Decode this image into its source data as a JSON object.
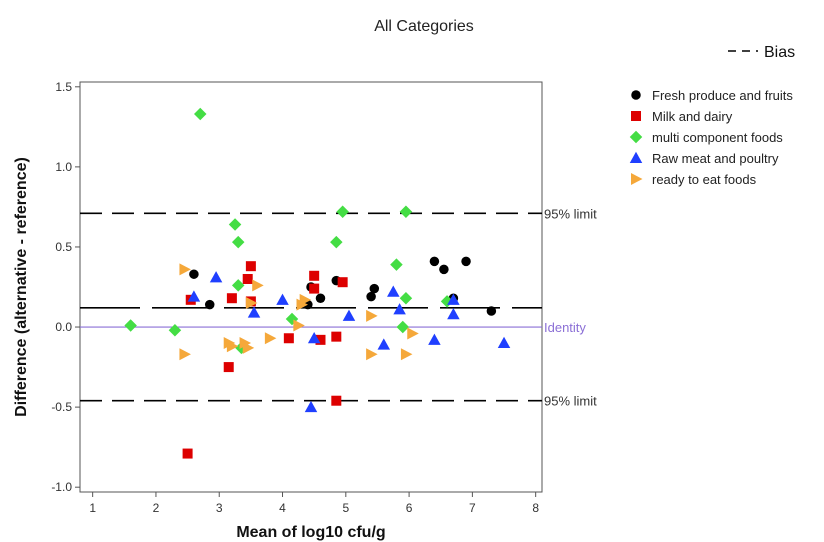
{
  "chart_data": {
    "type": "scatter",
    "title": "All Categories",
    "xlabel": "Mean of log10 cfu/g",
    "ylabel": "Difference (alternative - reference)",
    "xlim": [
      0.8,
      8.1
    ],
    "ylim": [
      -1.03,
      1.53
    ],
    "x_ticks": [
      1,
      2,
      3,
      4,
      5,
      6,
      7,
      8
    ],
    "y_ticks": [
      -1.0,
      -0.5,
      0.0,
      0.5,
      1.0,
      1.5
    ],
    "x_tick_labels": [
      "1",
      "2",
      "3",
      "4",
      "5",
      "6",
      "7",
      "8"
    ],
    "y_tick_labels": [
      "-1.0",
      "-0.5",
      "0.0",
      "0.5",
      "1.0",
      "1.5"
    ],
    "grid": false,
    "legend_position": "right",
    "lines": {
      "bias": {
        "label": "Bias",
        "value": 0.12,
        "color": "#000000",
        "dash": "dashed"
      },
      "upper_limit": {
        "label": "95% limit",
        "value": 0.71,
        "color": "#000000",
        "dash": "long-dash"
      },
      "lower_limit": {
        "label": "95% limit",
        "value": -0.46,
        "color": "#000000",
        "dash": "long-dash"
      },
      "identity": {
        "label": "Identity",
        "value": 0.0,
        "color": "#8b6fd6",
        "dash": "solid"
      }
    },
    "series": [
      {
        "name": "Fresh produce and fruits",
        "marker": "circle",
        "color": "#000000",
        "points": [
          [
            2.6,
            0.33
          ],
          [
            2.85,
            0.14
          ],
          [
            4.4,
            0.14
          ],
          [
            4.45,
            0.25
          ],
          [
            4.6,
            0.18
          ],
          [
            4.85,
            0.29
          ],
          [
            5.4,
            0.19
          ],
          [
            5.45,
            0.24
          ],
          [
            6.4,
            0.41
          ],
          [
            6.55,
            0.36
          ],
          [
            6.7,
            0.18
          ],
          [
            6.9,
            0.41
          ],
          [
            7.3,
            0.1
          ]
        ]
      },
      {
        "name": "Milk and dairy",
        "marker": "square",
        "color": "#dd0000",
        "points": [
          [
            2.5,
            -0.79
          ],
          [
            2.55,
            0.17
          ],
          [
            3.15,
            -0.25
          ],
          [
            3.2,
            0.18
          ],
          [
            3.45,
            0.3
          ],
          [
            3.5,
            0.38
          ],
          [
            3.5,
            0.16
          ],
          [
            4.1,
            -0.07
          ],
          [
            4.5,
            0.32
          ],
          [
            4.5,
            0.24
          ],
          [
            4.6,
            -0.08
          ],
          [
            4.85,
            -0.06
          ],
          [
            4.85,
            -0.46
          ],
          [
            4.95,
            0.28
          ]
        ]
      },
      {
        "name": "multi component foods",
        "marker": "diamond",
        "color": "#44dd44",
        "points": [
          [
            1.6,
            0.01
          ],
          [
            2.3,
            -0.02
          ],
          [
            2.7,
            1.33
          ],
          [
            3.25,
            0.64
          ],
          [
            3.3,
            0.53
          ],
          [
            3.3,
            0.26
          ],
          [
            3.35,
            -0.13
          ],
          [
            4.15,
            0.05
          ],
          [
            4.85,
            0.53
          ],
          [
            4.95,
            0.72
          ],
          [
            5.8,
            0.39
          ],
          [
            5.95,
            0.72
          ],
          [
            5.95,
            0.18
          ],
          [
            5.9,
            0.0
          ],
          [
            6.6,
            0.16
          ]
        ]
      },
      {
        "name": "Raw meat and poultry",
        "marker": "triangle",
        "color": "#1f3fff",
        "points": [
          [
            2.6,
            0.19
          ],
          [
            2.95,
            0.31
          ],
          [
            3.55,
            0.09
          ],
          [
            4.0,
            0.17
          ],
          [
            4.45,
            -0.5
          ],
          [
            4.5,
            -0.07
          ],
          [
            5.05,
            0.07
          ],
          [
            5.6,
            -0.11
          ],
          [
            5.75,
            0.22
          ],
          [
            5.85,
            0.11
          ],
          [
            6.4,
            -0.08
          ],
          [
            6.7,
            0.08
          ],
          [
            6.7,
            0.17
          ],
          [
            7.5,
            -0.1
          ]
        ]
      },
      {
        "name": "ready to eat foods",
        "marker": "triangle-right",
        "color": "#f5a83a",
        "points": [
          [
            2.45,
            0.36
          ],
          [
            2.45,
            -0.17
          ],
          [
            3.15,
            -0.1
          ],
          [
            3.2,
            -0.12
          ],
          [
            3.45,
            -0.13
          ],
          [
            3.5,
            0.15
          ],
          [
            3.6,
            0.26
          ],
          [
            3.8,
            -0.07
          ],
          [
            4.25,
            0.01
          ],
          [
            4.3,
            0.14
          ],
          [
            5.4,
            0.07
          ],
          [
            5.4,
            -0.17
          ],
          [
            5.95,
            -0.17
          ],
          [
            6.05,
            -0.04
          ],
          [
            4.35,
            0.17
          ],
          [
            3.4,
            -0.1
          ]
        ]
      }
    ]
  }
}
